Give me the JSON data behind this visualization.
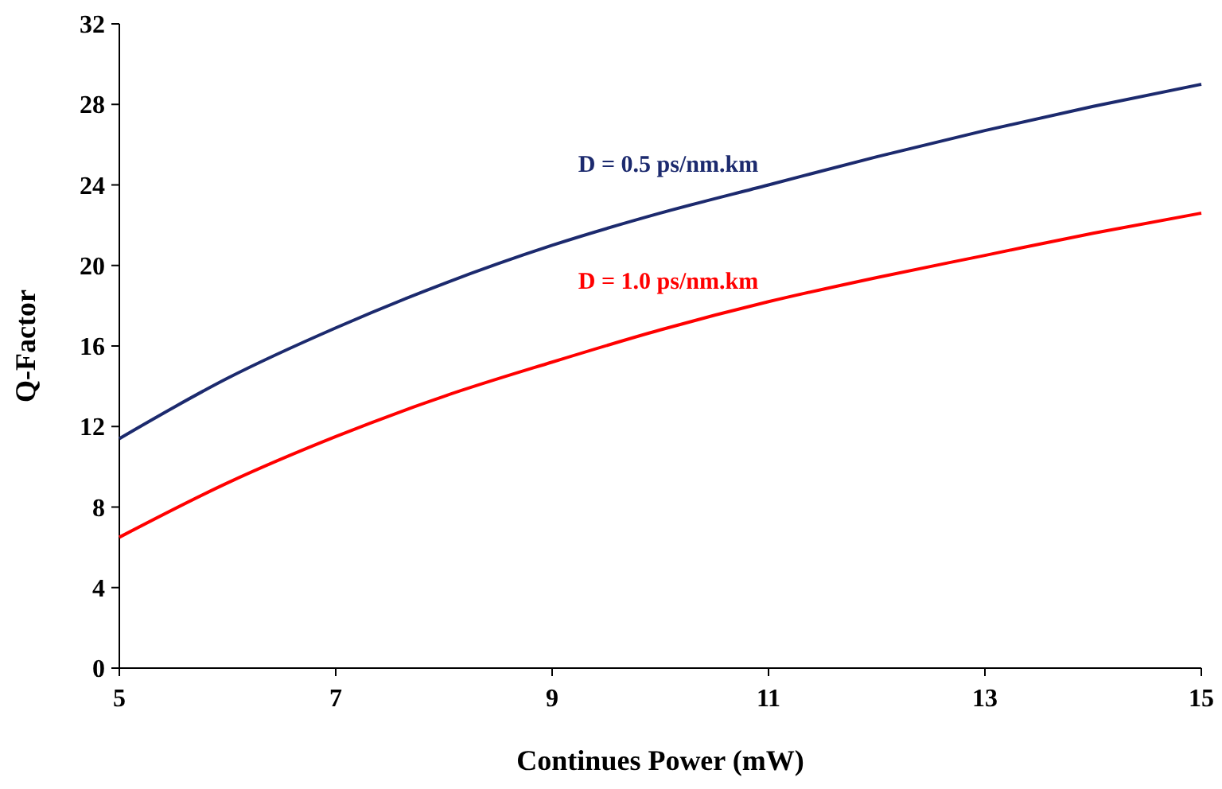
{
  "chart_data": {
    "type": "line",
    "xlabel": "Continues Power (mW)",
    "ylabel": "Q-Factor",
    "x": [
      5,
      6,
      7,
      8,
      9,
      10,
      11,
      12,
      13,
      14,
      15
    ],
    "series": [
      {
        "name": "D = 0.5 ps/nm.km",
        "color": "#1c2a6e",
        "values": [
          11.4,
          14.4,
          16.9,
          19.1,
          21.0,
          22.6,
          24.0,
          25.4,
          26.7,
          27.9,
          29.0
        ]
      },
      {
        "name": "D = 1.0 ps/nm.km",
        "color": "#ff0000",
        "values": [
          6.5,
          9.2,
          11.5,
          13.5,
          15.2,
          16.8,
          18.2,
          19.4,
          20.5,
          21.6,
          22.6
        ]
      }
    ],
    "xlim": [
      5,
      15
    ],
    "xticks": [
      5,
      7,
      9,
      11,
      13,
      15
    ],
    "ylim": [
      0,
      32
    ],
    "yticks": [
      0,
      4,
      8,
      12,
      16,
      20,
      24,
      28,
      32
    ],
    "line_style": "solid"
  }
}
